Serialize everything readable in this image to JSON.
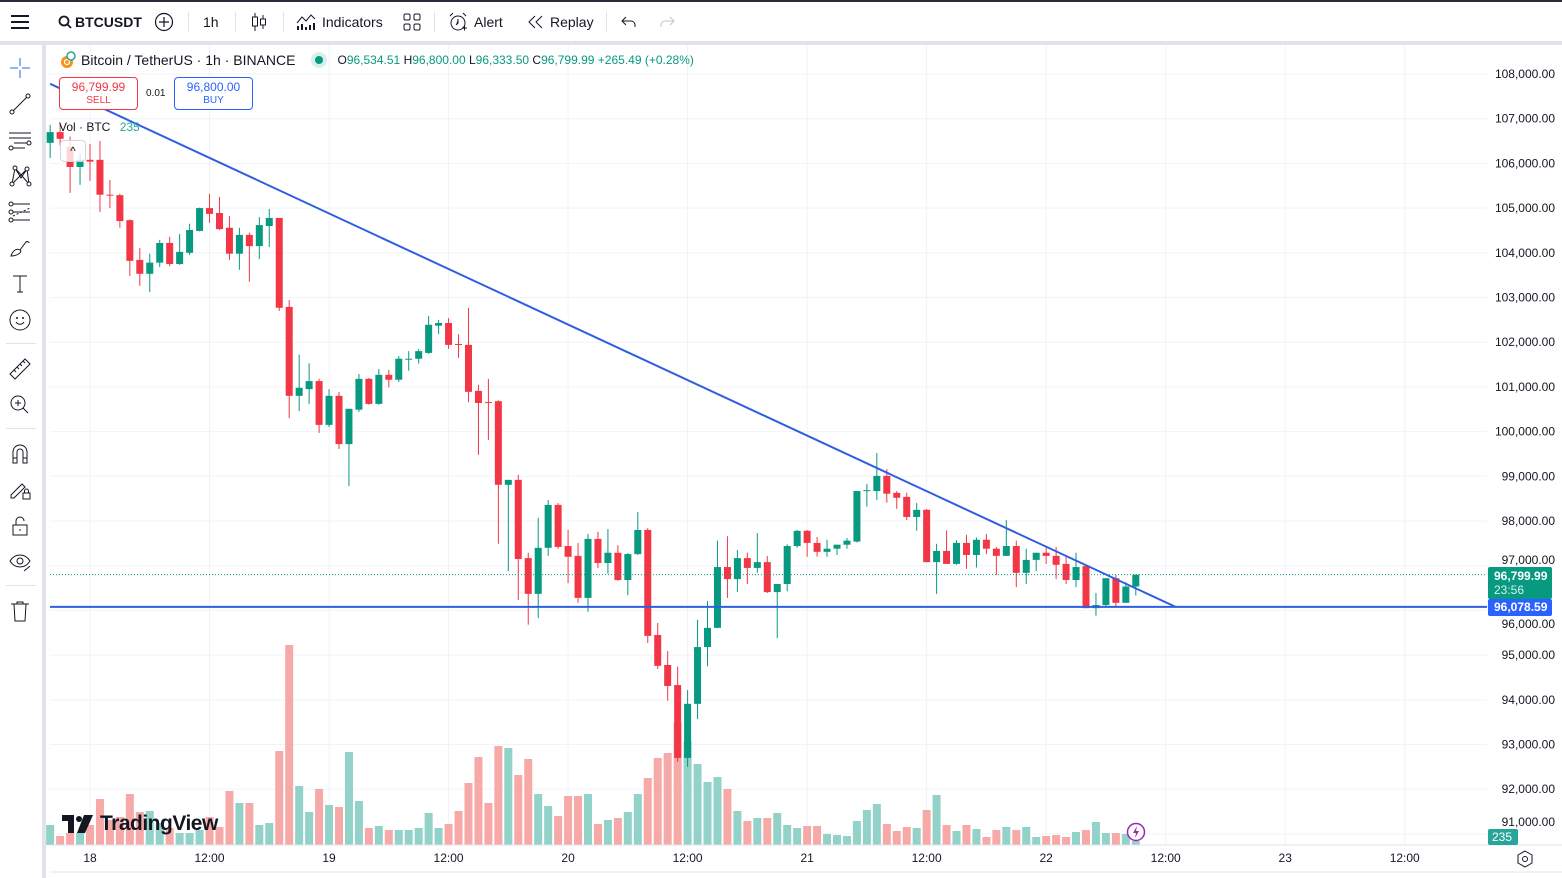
{
  "toolbar": {
    "symbol": "BTCUSDT",
    "interval": "1h",
    "indicators_label": "Indicators",
    "alert_label": "Alert",
    "replay_label": "Replay"
  },
  "legend": {
    "title": "Bitcoin / TetherUS · 1h · BINANCE",
    "o_label": "O",
    "o": "96,534.51",
    "h_label": "H",
    "h": "96,800.00",
    "l_label": "L",
    "l": "96,333.50",
    "c_label": "C",
    "c": "96,799.99",
    "change": "+265.49 (+0.28%)"
  },
  "trade": {
    "sell_price": "96,799.99",
    "sell_label": "SELL",
    "qty": "0.01",
    "buy_price": "96,800.00",
    "buy_label": "BUY"
  },
  "volume_legend": {
    "label": "Vol · BTC",
    "value": "235"
  },
  "price_tags": {
    "last_price": "96,799.99",
    "countdown": "23:56",
    "hline_price": "96,078.59",
    "volume_tag": "235"
  },
  "branding": {
    "logo_text": "TradingView"
  },
  "colors": {
    "up": "#089981",
    "down": "#f23645",
    "up_vol": "#92d2c9",
    "down_vol": "#f7a9a7",
    "drawing": "#2f5fe0",
    "accent": "#2962ff"
  },
  "chart_data": {
    "type": "candlestick",
    "title": "Bitcoin / TetherUS · 1h · BINANCE",
    "ylim": [
      91000,
      108000
    ],
    "y_ticks": [
      "108,000.00",
      "107,000.00",
      "106,000.00",
      "105,000.00",
      "104,000.00",
      "103,000.00",
      "102,000.00",
      "101,000.00",
      "100,000.00",
      "99,000.00",
      "98,000.00",
      "97,000.00",
      "96,000.00",
      "95,000.00",
      "94,000.00",
      "93,000.00",
      "92,000.00",
      "91,000.00"
    ],
    "y_tick_values": [
      108000,
      107000,
      106000,
      105000,
      104000,
      103000,
      102000,
      101000,
      100000,
      99000,
      98000,
      97000,
      96000,
      95000,
      94000,
      93000,
      92000,
      91000
    ],
    "x_ticks": [
      "18",
      "12:00",
      "19",
      "12:00",
      "20",
      "12:00",
      "21",
      "12:00",
      "22",
      "12:00",
      "23",
      "12:00"
    ],
    "x_tick_hours": [
      0,
      12,
      24,
      36,
      48,
      60,
      72,
      84,
      96,
      108,
      120,
      132
    ],
    "first_candle_hour": -4,
    "candles_ohlc": [
      [
        106460,
        106860,
        106120,
        106700
      ],
      [
        106700,
        106900,
        106400,
        106550
      ],
      [
        106370,
        106600,
        105340,
        105920
      ],
      [
        105920,
        106230,
        105520,
        106080
      ],
      [
        106080,
        106430,
        105610,
        106040
      ],
      [
        106080,
        106500,
        104910,
        105300
      ],
      [
        105300,
        105630,
        105000,
        105290
      ],
      [
        105290,
        105320,
        104560,
        104710
      ],
      [
        104730,
        104750,
        103480,
        103820
      ],
      [
        103840,
        104110,
        103260,
        103530
      ],
      [
        103530,
        103980,
        103120,
        103780
      ],
      [
        103780,
        104290,
        103680,
        104220
      ],
      [
        104220,
        104360,
        103700,
        103750
      ],
      [
        103750,
        104420,
        103730,
        104020
      ],
      [
        104000,
        104650,
        103950,
        104510
      ],
      [
        104490,
        105010,
        104480,
        105000
      ],
      [
        105000,
        105320,
        104670,
        104870
      ],
      [
        104890,
        105250,
        104510,
        104530
      ],
      [
        104560,
        104820,
        103840,
        103980
      ],
      [
        103980,
        104560,
        103620,
        104400
      ],
      [
        104400,
        104450,
        103350,
        104150
      ],
      [
        104150,
        104800,
        103860,
        104620
      ],
      [
        104600,
        104980,
        104130,
        104780
      ],
      [
        104780,
        104780,
        102700,
        102770
      ],
      [
        102790,
        102940,
        100300,
        100800
      ],
      [
        100800,
        101720,
        100460,
        100980
      ],
      [
        100950,
        101530,
        100620,
        101130
      ],
      [
        101130,
        101180,
        99970,
        100150
      ],
      [
        100150,
        100950,
        100100,
        100800
      ],
      [
        100800,
        100890,
        99610,
        99720
      ],
      [
        99720,
        100510,
        98780,
        100510
      ],
      [
        100490,
        101290,
        100440,
        101180
      ],
      [
        101180,
        101200,
        100600,
        100620
      ],
      [
        100620,
        101400,
        100600,
        101270
      ],
      [
        101270,
        101380,
        100990,
        101160
      ],
      [
        101160,
        101690,
        101110,
        101630
      ],
      [
        101620,
        101800,
        101360,
        101630
      ],
      [
        101630,
        101850,
        101520,
        101800
      ],
      [
        101760,
        102590,
        101740,
        102390
      ],
      [
        102370,
        102500,
        102180,
        102430
      ],
      [
        102430,
        102540,
        101850,
        101940
      ],
      [
        101960,
        102180,
        101650,
        101940
      ],
      [
        101940,
        102770,
        100660,
        100890
      ],
      [
        100910,
        101050,
        99480,
        100640
      ],
      [
        100660,
        101180,
        99810,
        100640
      ],
      [
        100680,
        100700,
        97490,
        98810
      ],
      [
        98810,
        98920,
        96880,
        98920
      ],
      [
        98920,
        99030,
        96230,
        97150
      ],
      [
        97170,
        97290,
        95680,
        96370
      ],
      [
        96370,
        98070,
        95830,
        97400
      ],
      [
        97400,
        98470,
        97220,
        98360
      ],
      [
        98360,
        98400,
        97380,
        97420
      ],
      [
        97440,
        97800,
        96610,
        97200
      ],
      [
        97220,
        97510,
        96170,
        96280
      ],
      [
        96280,
        97710,
        95970,
        97600
      ],
      [
        97600,
        97760,
        96950,
        97060
      ],
      [
        97060,
        97820,
        96820,
        97290
      ],
      [
        97290,
        97460,
        96660,
        96680
      ],
      [
        96680,
        97280,
        96340,
        97260
      ],
      [
        97260,
        98200,
        97240,
        97800
      ],
      [
        97800,
        97840,
        95270,
        95430
      ],
      [
        95450,
        95720,
        94690,
        94760
      ],
      [
        94780,
        95090,
        93980,
        94310
      ],
      [
        94330,
        94740,
        92610,
        92700
      ],
      [
        92700,
        94220,
        92500,
        93910
      ],
      [
        93910,
        95790,
        93570,
        95180
      ],
      [
        95180,
        96210,
        94750,
        95610
      ],
      [
        95610,
        97560,
        95600,
        96970
      ],
      [
        96970,
        97660,
        96280,
        96700
      ],
      [
        96700,
        97350,
        96410,
        97170
      ],
      [
        97170,
        97290,
        96590,
        96950
      ],
      [
        96950,
        97730,
        96840,
        97080
      ],
      [
        97080,
        97220,
        96390,
        96410
      ],
      [
        96410,
        96590,
        95380,
        96590
      ],
      [
        96590,
        97480,
        96430,
        97440
      ],
      [
        97440,
        97800,
        97400,
        97780
      ],
      [
        97780,
        97800,
        97200,
        97510
      ],
      [
        97510,
        97640,
        97200,
        97310
      ],
      [
        97310,
        97580,
        97200,
        97380
      ],
      [
        97380,
        97470,
        97240,
        97470
      ],
      [
        97470,
        97620,
        97380,
        97560
      ],
      [
        97540,
        98670,
        97520,
        98670
      ],
      [
        98670,
        98830,
        98320,
        98690
      ],
      [
        98670,
        99520,
        98470,
        99010
      ],
      [
        99010,
        99160,
        98410,
        98610
      ],
      [
        98630,
        98670,
        98270,
        98520
      ],
      [
        98540,
        98630,
        98020,
        98090
      ],
      [
        98090,
        98400,
        97780,
        98250
      ],
      [
        98250,
        98270,
        97080,
        97080
      ],
      [
        97080,
        97490,
        96370,
        97330
      ],
      [
        97330,
        97790,
        97040,
        97040
      ],
      [
        97040,
        97570,
        97020,
        97510
      ],
      [
        97510,
        97690,
        96930,
        97240
      ],
      [
        97240,
        97630,
        96960,
        97580
      ],
      [
        97580,
        97710,
        97260,
        97380
      ],
      [
        97380,
        97420,
        96790,
        97220
      ],
      [
        97220,
        98020,
        97220,
        97440
      ],
      [
        97440,
        97560,
        96520,
        96840
      ],
      [
        96840,
        97380,
        96590,
        97130
      ],
      [
        97130,
        97290,
        96880,
        97290
      ],
      [
        97290,
        97420,
        97040,
        97220
      ],
      [
        97220,
        97420,
        96700,
        97020
      ],
      [
        97040,
        97200,
        96590,
        96680
      ],
      [
        96680,
        97290,
        96520,
        96970
      ],
      [
        96990,
        97020,
        96050,
        96050
      ],
      [
        96050,
        96390,
        95880,
        96120
      ],
      [
        96120,
        96720,
        96070,
        96720
      ],
      [
        96720,
        96790,
        96070,
        96170
      ],
      [
        96170,
        96630,
        96170,
        96534.51
      ],
      [
        96534.51,
        96800,
        96333.5,
        96799.99
      ]
    ],
    "volume_btc": [
      1200,
      540,
      720,
      720,
      1200,
      2760,
      1500,
      1680,
      3060,
      1980,
      2040,
      1320,
      1020,
      720,
      720,
      900,
      1680,
      1080,
      3240,
      2520,
      2520,
      1200,
      1320,
      5640,
      12000,
      3540,
      1980,
      3360,
      2400,
      2280,
      5580,
      2640,
      1020,
      1140,
      900,
      900,
      900,
      1020,
      1920,
      1020,
      1260,
      2040,
      3720,
      5280,
      2520,
      5940,
      5820,
      4200,
      5160,
      3060,
      2340,
      1740,
      2940,
      2940,
      3060,
      1260,
      1500,
      1620,
      1980,
      3060,
      4020,
      5220,
      5520,
      7320,
      6240,
      4860,
      3780,
      4080,
      3360,
      2040,
      1440,
      1620,
      1620,
      1920,
      1200,
      1020,
      1140,
      1140,
      660,
      600,
      540,
      1440,
      2100,
      2460,
      1260,
      840,
      1080,
      1020,
      2100,
      3000,
      1200,
      840,
      1200,
      960,
      480,
      900,
      1080,
      900,
      1080,
      480,
      540,
      600,
      480,
      780,
      900,
      1380,
      720,
      720,
      660,
      235
    ],
    "last_price": 96799.99,
    "drawings": {
      "trendline": {
        "start": {
          "candle": 0,
          "price": 107780
        },
        "end": {
          "candle": 113,
          "price": 96078.59
        }
      },
      "horizontal_line": {
        "price": 96078.59
      }
    }
  }
}
